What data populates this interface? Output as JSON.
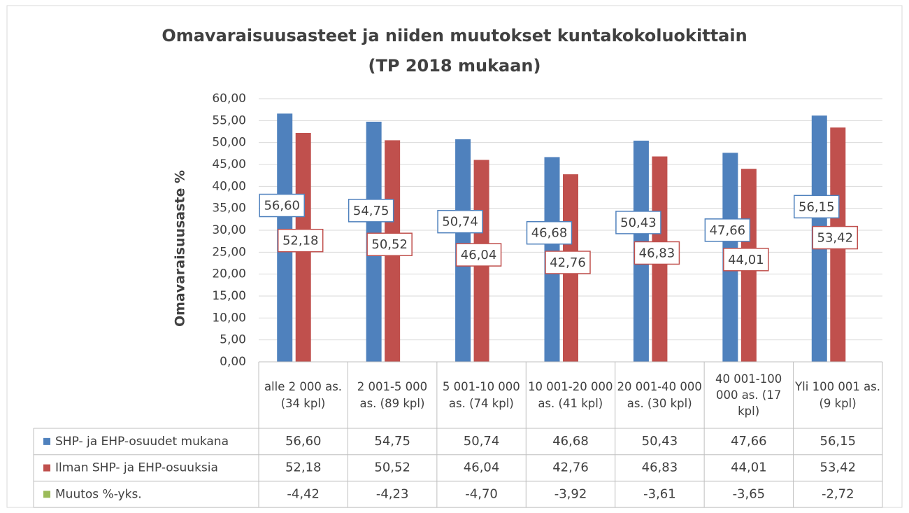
{
  "chart_data": {
    "type": "bar",
    "title": "Omavaraisuusasteet ja niiden muutokset kuntakokoluokittain",
    "subtitle": "(TP 2018 mukaan)",
    "y_label": "Omavaraisuusaste  %",
    "categories": [
      "alle 2 000 as. (34 kpl)",
      "2 001-5 000 as. (89 kpl)",
      "5 001-10 000 as. (74 kpl)",
      "10 001-20 000 as. (41 kpl)",
      "20 001-40 000 as. (30 kpl)",
      "40 001-100 000 as. (17 kpl)",
      "Yli 100 001 as. (9 kpl)"
    ],
    "series": [
      {
        "name": "SHP- ja EHP-osuudet mukana",
        "color": "#4f81bd",
        "values": [
          56.6,
          54.75,
          50.74,
          46.68,
          50.43,
          47.66,
          56.15
        ],
        "value_labels": [
          "56,60",
          "54,75",
          "50,74",
          "46,68",
          "50,43",
          "47,66",
          "56,15"
        ]
      },
      {
        "name": "Ilman SHP- ja EHP-osuuksia",
        "color": "#c0504d",
        "values": [
          52.18,
          50.52,
          46.04,
          42.76,
          46.83,
          44.01,
          53.42
        ],
        "value_labels": [
          "52,18",
          "50,52",
          "46,04",
          "42,76",
          "46,83",
          "44,01",
          "53,42"
        ]
      },
      {
        "name": "Muutos %-yks.",
        "color": "#9bbb59",
        "values": [
          -4.42,
          -4.23,
          -4.7,
          -3.92,
          -3.61,
          -3.65,
          -2.72
        ],
        "value_labels": [
          "-4,42",
          "-4,23",
          "-4,70",
          "-3,92",
          "-3,61",
          "-3,65",
          "-2,72"
        ]
      }
    ],
    "ylim": [
      0,
      60
    ],
    "yticks": [
      {
        "value": 0,
        "label": "0,00"
      },
      {
        "value": 5,
        "label": "5,00"
      },
      {
        "value": 10,
        "label": "10,00"
      },
      {
        "value": 15,
        "label": "15,00"
      },
      {
        "value": 20,
        "label": "20,00"
      },
      {
        "value": 25,
        "label": "25,00"
      },
      {
        "value": 30,
        "label": "30,00"
      },
      {
        "value": 35,
        "label": "35,00"
      },
      {
        "value": 40,
        "label": "40,00"
      },
      {
        "value": 45,
        "label": "45,00"
      },
      {
        "value": 50,
        "label": "50,00"
      },
      {
        "value": 55,
        "label": "55,00"
      },
      {
        "value": 60,
        "label": "60,00"
      }
    ],
    "grid": true
  }
}
